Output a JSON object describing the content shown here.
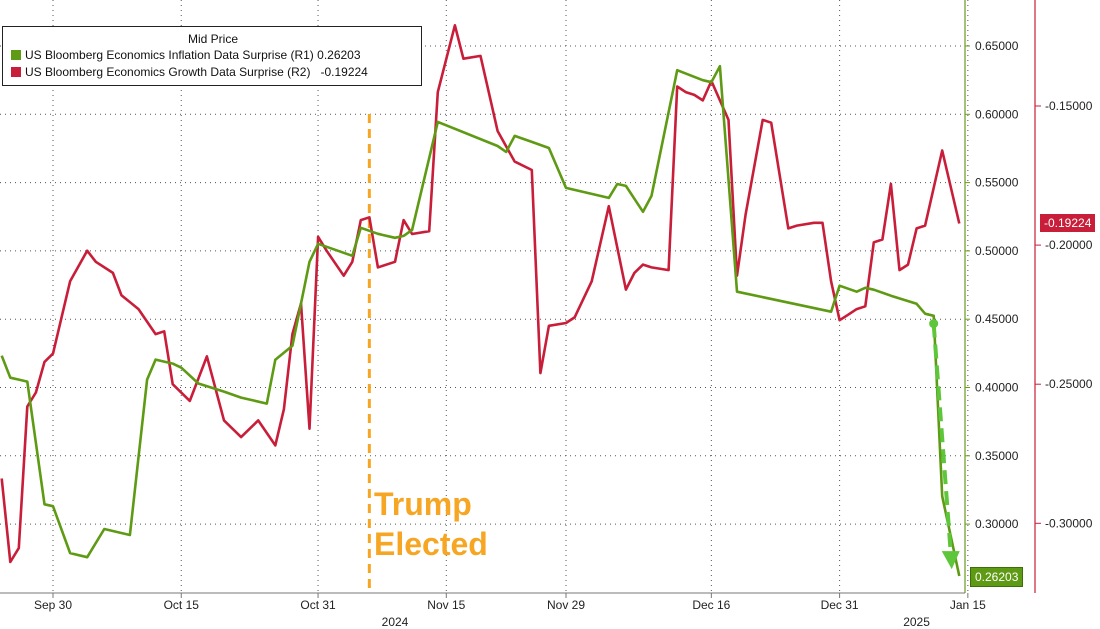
{
  "chart_data": {
    "type": "line",
    "legend": {
      "title": "Mid Price",
      "placement": "top-left",
      "entries": [
        {
          "name": "US Bloomberg Economics Inflation Data Surprise",
          "axis": "(R1)",
          "last": "0.26203",
          "color": "#5e9a14"
        },
        {
          "name": "US Bloomberg Economics Growth Data Surprise",
          "axis": " (R2)",
          "last": "-0.19224",
          "color": "#c81e3a"
        }
      ]
    },
    "x_ticks": [
      "Sep 30",
      "Oct 15",
      "Oct 31",
      "Nov 15",
      "Nov 29",
      "Dec 16",
      "Dec 31",
      "Jan 15"
    ],
    "year_labels": [
      "2024",
      "2025"
    ],
    "r1_axis": {
      "ticks": [
        "0.65000",
        "0.60000",
        "0.55000",
        "0.50000",
        "0.45000",
        "0.40000",
        "0.35000",
        "0.30000"
      ],
      "tick_values": [
        0.65,
        0.6,
        0.55,
        0.5,
        0.45,
        0.4,
        0.35,
        0.3
      ],
      "last_label": "0.26203"
    },
    "r2_axis": {
      "ticks": [
        "-0.15000",
        "-0.20000",
        "-0.25000",
        "-0.30000"
      ],
      "tick_values": [
        -0.15,
        -0.2,
        -0.25,
        -0.3
      ],
      "last_label": "-0.19224"
    },
    "series": [
      {
        "name": "US Bloomberg Economics Inflation Data Surprise",
        "axis": "R1",
        "color": "#5e9a14",
        "points": [
          [
            "2024-09-24",
            0.4233
          ],
          [
            "2024-09-25",
            0.4072
          ],
          [
            "2024-09-26",
            0.4058
          ],
          [
            "2024-09-27",
            0.4043
          ],
          [
            "2024-09-29",
            0.3145
          ],
          [
            "2024-09-30",
            0.3131
          ],
          [
            "2024-10-02",
            0.2788
          ],
          [
            "2024-10-04",
            0.2758
          ],
          [
            "2024-10-06",
            0.2964
          ],
          [
            "2024-10-09",
            0.292
          ],
          [
            "2024-10-11",
            0.4058
          ],
          [
            "2024-10-12",
            0.4204
          ],
          [
            "2024-10-14",
            0.4175
          ],
          [
            "2024-10-15",
            0.4145
          ],
          [
            "2024-10-17",
            0.4029
          ],
          [
            "2024-10-20",
            0.397
          ],
          [
            "2024-10-22",
            0.3926
          ],
          [
            "2024-10-25",
            0.3882
          ],
          [
            "2024-10-26",
            0.4203
          ],
          [
            "2024-10-28",
            0.4306
          ],
          [
            "2024-10-30",
            0.492
          ],
          [
            "2024-10-31",
            0.5052
          ],
          [
            "2024-11-02",
            0.5008
          ],
          [
            "2024-11-04",
            0.4964
          ],
          [
            "2024-11-05",
            0.5169
          ],
          [
            "2024-11-07",
            0.5125
          ],
          [
            "2024-11-09",
            0.5096
          ],
          [
            "2024-11-10",
            0.511
          ],
          [
            "2024-11-11",
            0.5154
          ],
          [
            "2024-11-14",
            0.5944
          ],
          [
            "2024-11-21",
            0.5768
          ],
          [
            "2024-11-22",
            0.5725
          ],
          [
            "2024-11-23",
            0.5842
          ],
          [
            "2024-11-25",
            0.5798
          ],
          [
            "2024-11-27",
            0.5753
          ],
          [
            "2024-11-29",
            0.5461
          ],
          [
            "2024-12-02",
            0.5417
          ],
          [
            "2024-12-04",
            0.5388
          ],
          [
            "2024-12-05",
            0.549
          ],
          [
            "2024-12-06",
            0.5476
          ],
          [
            "2024-12-08",
            0.5286
          ],
          [
            "2024-12-09",
            0.5403
          ],
          [
            "2024-12-12",
            0.6323
          ],
          [
            "2024-12-15",
            0.625
          ],
          [
            "2024-12-16",
            0.6235
          ],
          [
            "2024-12-17",
            0.6352
          ],
          [
            "2024-12-19",
            0.4701
          ],
          [
            "2024-12-30",
            0.4555
          ],
          [
            "2024-12-31",
            0.4745
          ],
          [
            "2025-01-02",
            0.4701
          ],
          [
            "2025-01-03",
            0.473
          ],
          [
            "2025-01-04",
            0.4716
          ],
          [
            "2025-01-06",
            0.4672
          ],
          [
            "2025-01-09",
            0.4613
          ],
          [
            "2025-01-10",
            0.454
          ],
          [
            "2025-01-11",
            0.4525
          ],
          [
            "2025-01-12",
            0.3204
          ],
          [
            "2025-01-14",
            0.26203
          ]
        ]
      },
      {
        "name": "US Bloomberg Economics Growth Data Surprise",
        "axis": "R2",
        "color": "#c81e3a",
        "points": [
          [
            "2024-09-24",
            -0.2839
          ],
          [
            "2024-09-25",
            -0.3139
          ],
          [
            "2024-09-26",
            -0.3089
          ],
          [
            "2024-09-27",
            -0.258
          ],
          [
            "2024-09-28",
            -0.253
          ],
          [
            "2024-09-29",
            -0.242
          ],
          [
            "2024-09-30",
            -0.239
          ],
          [
            "2024-10-02",
            -0.213
          ],
          [
            "2024-10-04",
            -0.202
          ],
          [
            "2024-10-05",
            -0.206
          ],
          [
            "2024-10-07",
            -0.21
          ],
          [
            "2024-10-08",
            -0.218
          ],
          [
            "2024-10-10",
            -0.223
          ],
          [
            "2024-10-12",
            -0.232
          ],
          [
            "2024-10-13",
            -0.231
          ],
          [
            "2024-10-14",
            -0.25
          ],
          [
            "2024-10-16",
            -0.256
          ],
          [
            "2024-10-18",
            -0.24
          ],
          [
            "2024-10-20",
            -0.263
          ],
          [
            "2024-10-22",
            -0.269
          ],
          [
            "2024-10-24",
            -0.263
          ],
          [
            "2024-10-26",
            -0.272
          ],
          [
            "2024-10-27",
            -0.259
          ],
          [
            "2024-10-28",
            -0.232
          ],
          [
            "2024-10-29",
            -0.221
          ],
          [
            "2024-10-30",
            -0.266
          ],
          [
            "2024-10-31",
            -0.197
          ],
          [
            "2024-11-01",
            -0.202
          ],
          [
            "2024-11-03",
            -0.211
          ],
          [
            "2024-11-04",
            -0.206
          ],
          [
            "2024-11-05",
            -0.191
          ],
          [
            "2024-11-06",
            -0.19
          ],
          [
            "2024-11-07",
            -0.208
          ],
          [
            "2024-11-09",
            -0.206
          ],
          [
            "2024-11-10",
            -0.191
          ],
          [
            "2024-11-11",
            -0.196
          ],
          [
            "2024-11-13",
            -0.195
          ],
          [
            "2024-11-14",
            -0.145
          ],
          [
            "2024-11-16",
            -0.121
          ],
          [
            "2024-11-17",
            -0.133
          ],
          [
            "2024-11-19",
            -0.132
          ],
          [
            "2024-11-21",
            -0.159
          ],
          [
            "2024-11-23",
            -0.17
          ],
          [
            "2024-11-25",
            -0.173
          ],
          [
            "2024-11-26",
            -0.246
          ],
          [
            "2024-11-27",
            -0.229
          ],
          [
            "2024-11-29",
            -0.228
          ],
          [
            "2024-11-30",
            -0.226
          ],
          [
            "2024-12-02",
            -0.213
          ],
          [
            "2024-12-04",
            -0.186
          ],
          [
            "2024-12-06",
            -0.216
          ],
          [
            "2024-12-07",
            -0.21
          ],
          [
            "2024-12-08",
            -0.207
          ],
          [
            "2024-12-09",
            -0.208
          ],
          [
            "2024-12-11",
            -0.209
          ],
          [
            "2024-12-12",
            -0.143
          ],
          [
            "2024-12-13",
            -0.145
          ],
          [
            "2024-12-14",
            -0.146
          ],
          [
            "2024-12-15",
            -0.148
          ],
          [
            "2024-12-16",
            -0.141
          ],
          [
            "2024-12-18",
            -0.155
          ],
          [
            "2024-12-19",
            -0.211
          ],
          [
            "2024-12-20",
            -0.189
          ],
          [
            "2024-12-22",
            -0.155
          ],
          [
            "2024-12-23",
            -0.156
          ],
          [
            "2024-12-25",
            -0.194
          ],
          [
            "2024-12-26",
            -0.193
          ],
          [
            "2024-12-28",
            -0.192
          ],
          [
            "2024-12-29",
            -0.192
          ],
          [
            "2024-12-30",
            -0.213
          ],
          [
            "2024-12-31",
            -0.227
          ],
          [
            "2025-01-01",
            -0.225
          ],
          [
            "2025-01-02",
            -0.223
          ],
          [
            "2025-01-03",
            -0.222
          ],
          [
            "2025-01-04",
            -0.199
          ],
          [
            "2025-01-05",
            -0.198
          ],
          [
            "2025-01-06",
            -0.178
          ],
          [
            "2025-01-07",
            -0.209
          ],
          [
            "2025-01-08",
            -0.207
          ],
          [
            "2025-01-09",
            -0.194
          ],
          [
            "2025-01-10",
            -0.193
          ],
          [
            "2025-01-12",
            -0.166
          ],
          [
            "2025-01-14",
            -0.19224
          ]
        ]
      }
    ],
    "annotations": [
      {
        "text": "Trump Elected",
        "date": "2024-11-06",
        "color": "#f6a623"
      }
    ],
    "arrow": {
      "from": [
        "2025-01-11",
        0.4468
      ],
      "to": [
        "2025-01-13",
        0.27
      ],
      "color": "#5ec63a"
    }
  }
}
